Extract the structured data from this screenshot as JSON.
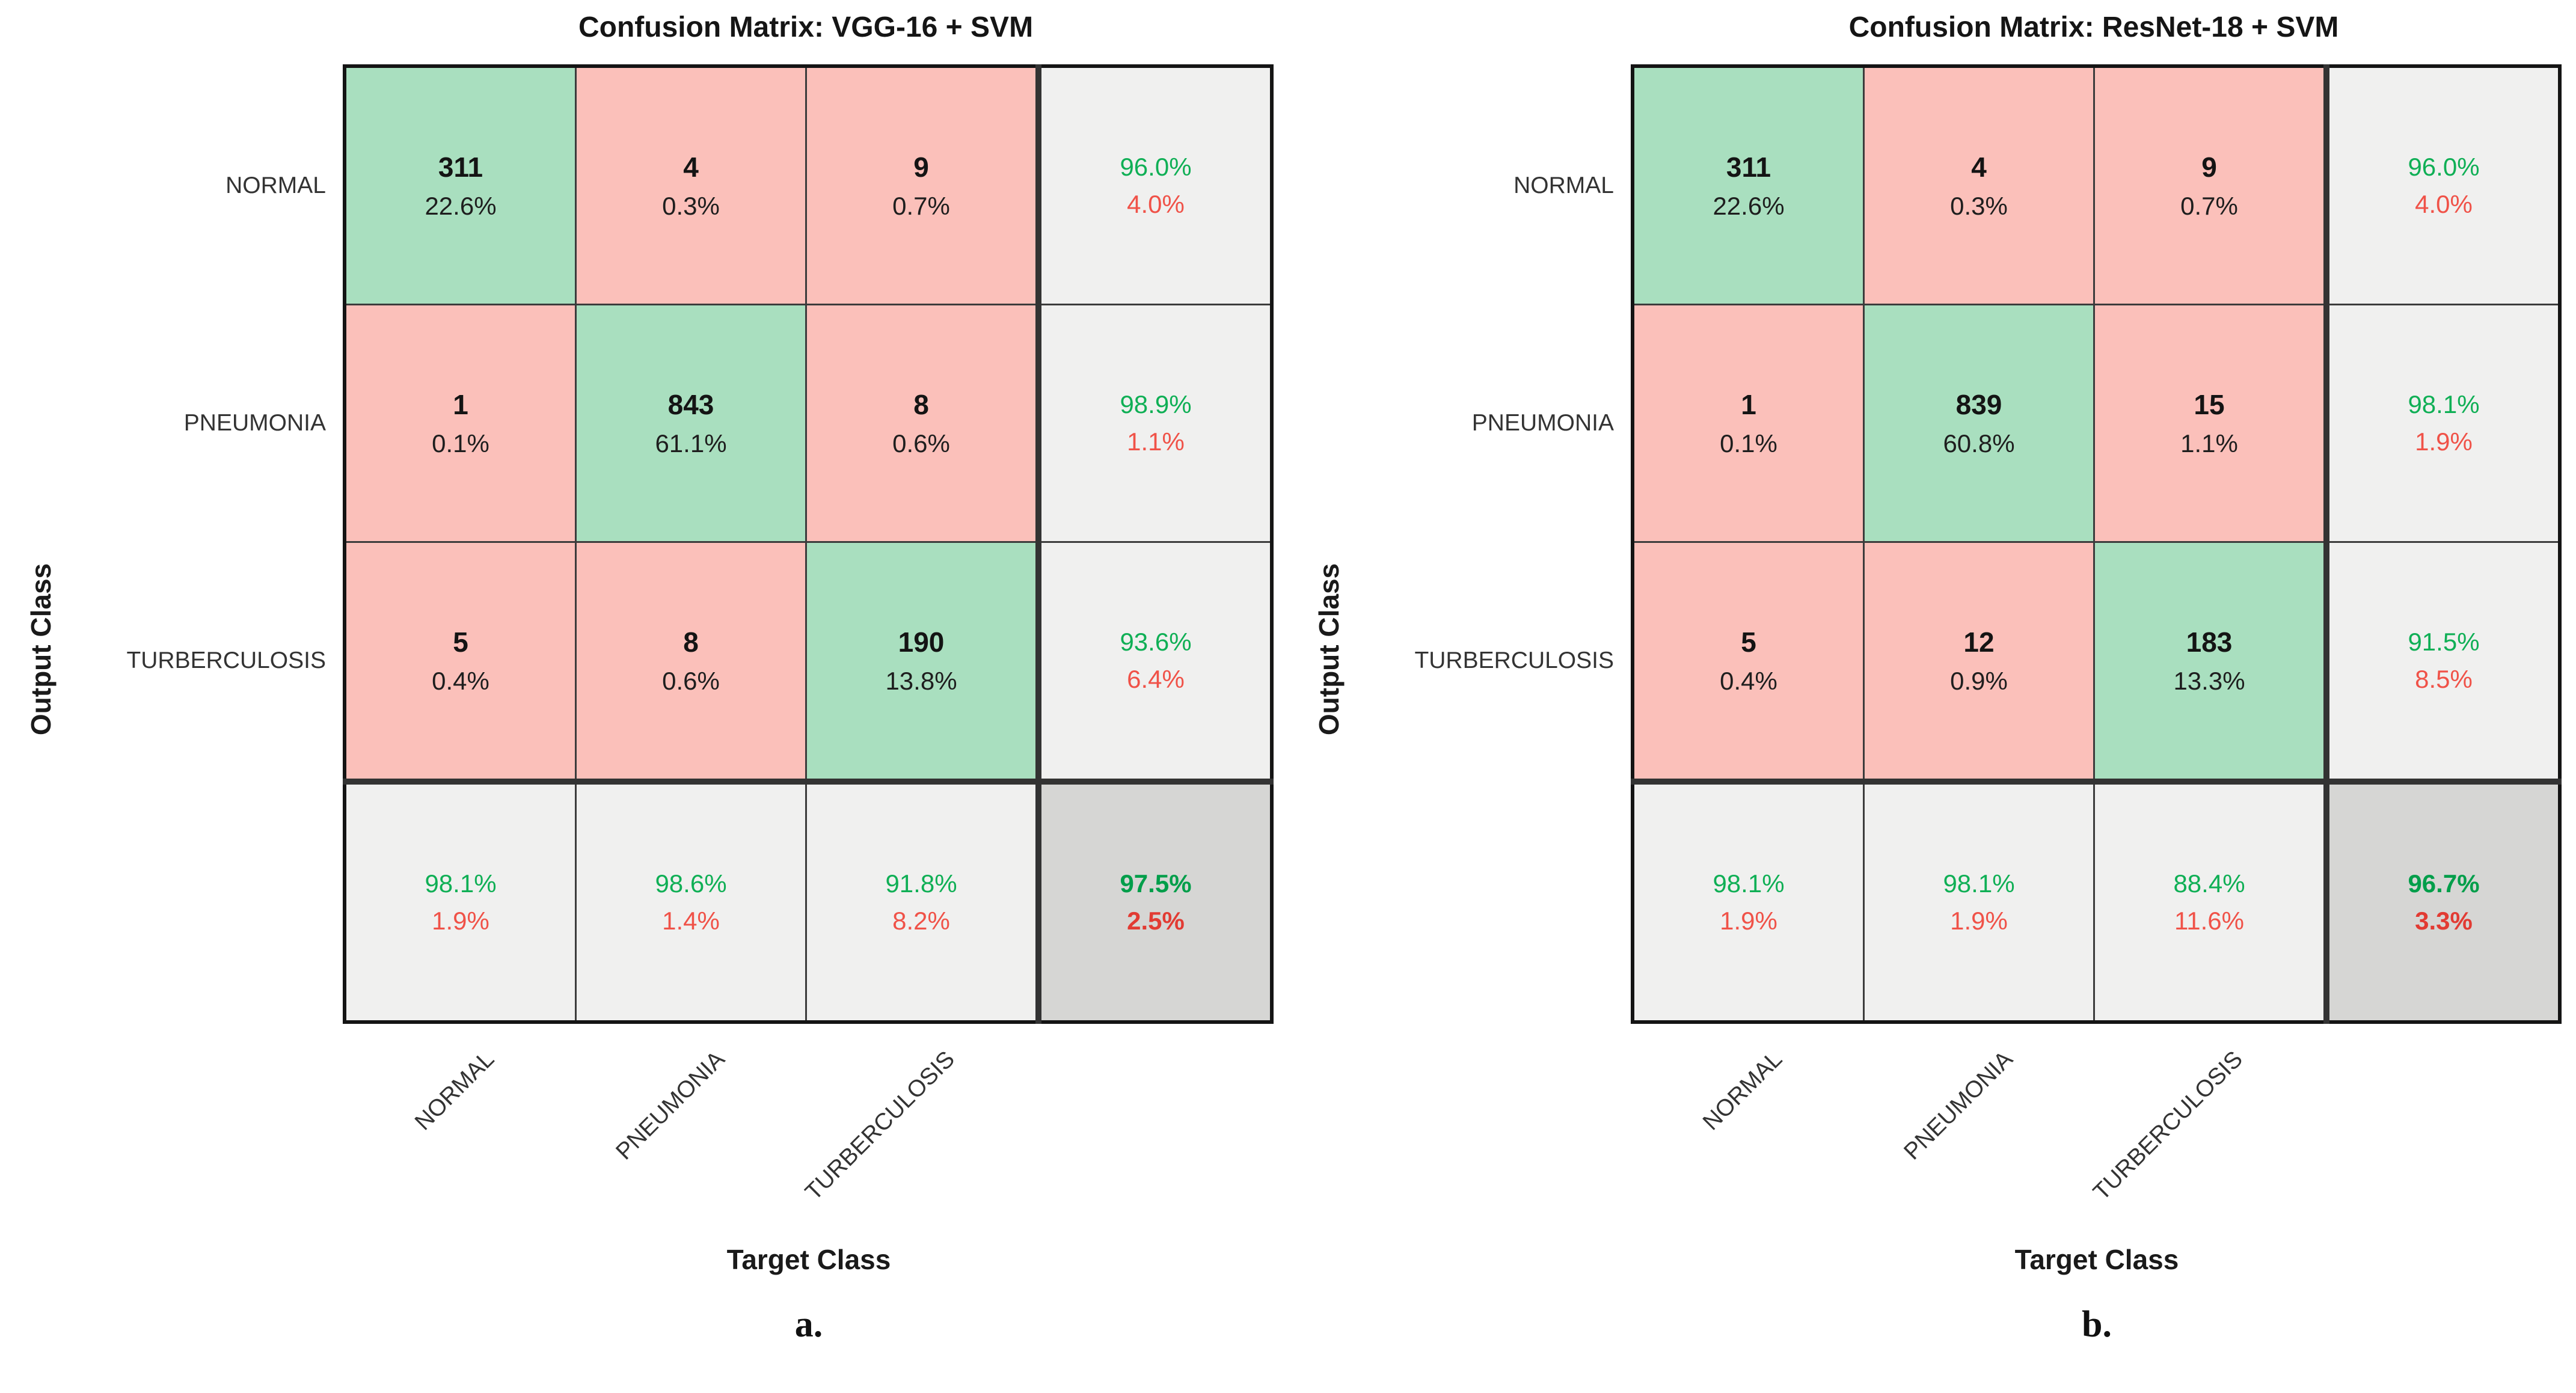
{
  "colors": {
    "diagonal_cell": "#a9dfbf",
    "off_cell": "#fbc0ba",
    "summary_cell": "#f0f0ef",
    "total_cell": "#d6d6d4",
    "green_text": "#0faf55",
    "green_text_bold": "#009e4a",
    "red_text": "#f05248",
    "red_text_bold": "#e23b33"
  },
  "panels": [
    {
      "caption": "a.",
      "title": "Confusion Matrix: VGG-16 + SVM",
      "y_label": "Output Class",
      "x_label": "Target Class",
      "row_labels": [
        "NORMAL",
        "PNEUMONIA",
        "TURBERCULOSIS"
      ],
      "col_labels": [
        "NORMAL",
        "PNEUMONIA",
        "TURBERCULOSIS"
      ],
      "cells": [
        [
          {
            "count": "311",
            "pct": "22.6%"
          },
          {
            "count": "4",
            "pct": "0.3%"
          },
          {
            "count": "9",
            "pct": "0.7%"
          },
          {
            "green": "96.0%",
            "red": "4.0%"
          }
        ],
        [
          {
            "count": "1",
            "pct": "0.1%"
          },
          {
            "count": "843",
            "pct": "61.1%"
          },
          {
            "count": "8",
            "pct": "0.6%"
          },
          {
            "green": "98.9%",
            "red": "1.1%"
          }
        ],
        [
          {
            "count": "5",
            "pct": "0.4%"
          },
          {
            "count": "8",
            "pct": "0.6%"
          },
          {
            "count": "190",
            "pct": "13.8%"
          },
          {
            "green": "93.6%",
            "red": "6.4%"
          }
        ],
        [
          {
            "green": "98.1%",
            "red": "1.9%"
          },
          {
            "green": "98.6%",
            "red": "1.4%"
          },
          {
            "green": "91.8%",
            "red": "8.2%"
          },
          {
            "green": "97.5%",
            "red": "2.5%"
          }
        ]
      ]
    },
    {
      "caption": "b.",
      "title": "Confusion Matrix: ResNet-18 + SVM",
      "y_label": "Output Class",
      "x_label": "Target Class",
      "row_labels": [
        "NORMAL",
        "PNEUMONIA",
        "TURBERCULOSIS"
      ],
      "col_labels": [
        "NORMAL",
        "PNEUMONIA",
        "TURBERCULOSIS"
      ],
      "cells": [
        [
          {
            "count": "311",
            "pct": "22.6%"
          },
          {
            "count": "4",
            "pct": "0.3%"
          },
          {
            "count": "9",
            "pct": "0.7%"
          },
          {
            "green": "96.0%",
            "red": "4.0%"
          }
        ],
        [
          {
            "count": "1",
            "pct": "0.1%"
          },
          {
            "count": "839",
            "pct": "60.8%"
          },
          {
            "count": "15",
            "pct": "1.1%"
          },
          {
            "green": "98.1%",
            "red": "1.9%"
          }
        ],
        [
          {
            "count": "5",
            "pct": "0.4%"
          },
          {
            "count": "12",
            "pct": "0.9%"
          },
          {
            "count": "183",
            "pct": "13.3%"
          },
          {
            "green": "91.5%",
            "red": "8.5%"
          }
        ],
        [
          {
            "green": "98.1%",
            "red": "1.9%"
          },
          {
            "green": "98.1%",
            "red": "1.9%"
          },
          {
            "green": "88.4%",
            "red": "11.6%"
          },
          {
            "green": "96.7%",
            "red": "3.3%"
          }
        ]
      ]
    }
  ],
  "chart_data": [
    {
      "type": "heatmap",
      "title": "Confusion Matrix: VGG-16 + SVM",
      "xlabel": "Target Class",
      "ylabel": "Output Class",
      "classes": [
        "NORMAL",
        "PNEUMONIA",
        "TURBERCULOSIS"
      ],
      "matrix_rows_output_cols_target": [
        [
          311,
          4,
          9
        ],
        [
          1,
          843,
          8
        ],
        [
          5,
          8,
          190
        ]
      ],
      "cell_pct_of_total": [
        [
          "22.6%",
          "0.3%",
          "0.7%"
        ],
        [
          "0.1%",
          "61.1%",
          "0.6%"
        ],
        [
          "0.4%",
          "0.6%",
          "13.8%"
        ]
      ],
      "row_summary_green": [
        "96.0%",
        "98.9%",
        "93.6%"
      ],
      "row_summary_red": [
        "4.0%",
        "1.1%",
        "6.4%"
      ],
      "col_summary_green": [
        "98.1%",
        "98.6%",
        "91.8%"
      ],
      "col_summary_red": [
        "1.9%",
        "1.4%",
        "8.2%"
      ],
      "overall_accuracy": "97.5%",
      "overall_error": "2.5%",
      "caption": "a."
    },
    {
      "type": "heatmap",
      "title": "Confusion Matrix: ResNet-18 + SVM",
      "xlabel": "Target Class",
      "ylabel": "Output Class",
      "classes": [
        "NORMAL",
        "PNEUMONIA",
        "TURBERCULOSIS"
      ],
      "matrix_rows_output_cols_target": [
        [
          311,
          4,
          9
        ],
        [
          1,
          839,
          15
        ],
        [
          5,
          12,
          183
        ]
      ],
      "cell_pct_of_total": [
        [
          "22.6%",
          "0.3%",
          "0.7%"
        ],
        [
          "0.1%",
          "60.8%",
          "1.1%"
        ],
        [
          "0.4%",
          "0.9%",
          "13.3%"
        ]
      ],
      "row_summary_green": [
        "96.0%",
        "98.1%",
        "91.5%"
      ],
      "row_summary_red": [
        "4.0%",
        "1.9%",
        "8.5%"
      ],
      "col_summary_green": [
        "98.1%",
        "98.1%",
        "88.4%"
      ],
      "col_summary_red": [
        "1.9%",
        "1.9%",
        "11.6%"
      ],
      "overall_accuracy": "96.7%",
      "overall_error": "3.3%",
      "caption": "b."
    }
  ]
}
